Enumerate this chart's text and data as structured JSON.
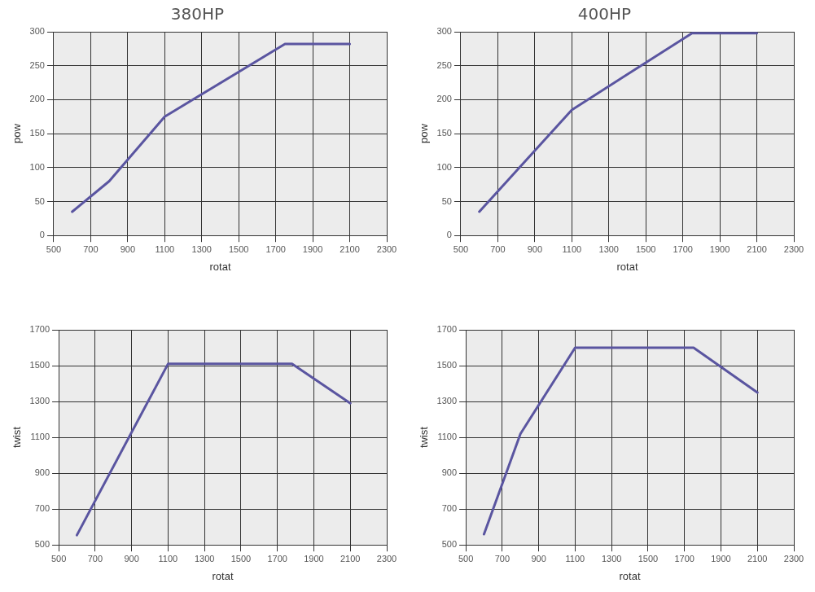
{
  "chart_data": [
    {
      "type": "line",
      "title": "380HP",
      "xlabel": "rotat",
      "ylabel": "pow",
      "x": [
        600,
        800,
        1100,
        1750,
        2100
      ],
      "series": [
        {
          "color": "#5a55a0",
          "values": [
            35,
            80,
            175,
            282,
            282
          ]
        }
      ],
      "xlim": [
        500,
        2300
      ],
      "xticks": [
        500,
        700,
        900,
        1100,
        1300,
        1500,
        1700,
        1900,
        2100,
        2300
      ],
      "ylim": [
        0,
        300
      ],
      "yticks": [
        0,
        50,
        100,
        150,
        200,
        250,
        300
      ],
      "grid": true,
      "marker": "none",
      "line_style": "solid"
    },
    {
      "type": "line",
      "title": "400HP",
      "xlabel": "rotat",
      "ylabel": "pow",
      "x": [
        600,
        1100,
        1750,
        2100
      ],
      "series": [
        {
          "color": "#5a55a0",
          "values": [
            35,
            185,
            298,
            298
          ]
        }
      ],
      "xlim": [
        500,
        2300
      ],
      "xticks": [
        500,
        700,
        900,
        1100,
        1300,
        1500,
        1700,
        1900,
        2100,
        2300
      ],
      "ylim": [
        0,
        300
      ],
      "yticks": [
        0,
        50,
        100,
        150,
        200,
        250,
        300
      ],
      "grid": true,
      "marker": "none",
      "line_style": "solid"
    },
    {
      "type": "line",
      "xlabel": "rotat",
      "ylabel": "twist",
      "x": [
        600,
        1100,
        1780,
        2100
      ],
      "series": [
        {
          "color": "#5a55a0",
          "values": [
            555,
            1510,
            1510,
            1290
          ]
        }
      ],
      "xlim": [
        500,
        2300
      ],
      "xticks": [
        500,
        700,
        900,
        1100,
        1300,
        1500,
        1700,
        1900,
        2100,
        2300
      ],
      "ylim": [
        500,
        1700
      ],
      "yticks": [
        500,
        700,
        900,
        1100,
        1300,
        1500,
        1700
      ],
      "grid": true,
      "marker": "none",
      "line_style": "solid"
    },
    {
      "type": "line",
      "xlabel": "rotat",
      "ylabel": "twist",
      "x": [
        600,
        800,
        1100,
        1750,
        2100
      ],
      "series": [
        {
          "color": "#5a55a0",
          "values": [
            560,
            1120,
            1600,
            1600,
            1350
          ]
        }
      ],
      "xlim": [
        500,
        2300
      ],
      "xticks": [
        500,
        700,
        900,
        1100,
        1300,
        1500,
        1700,
        1900,
        2100,
        2300
      ],
      "ylim": [
        500,
        1700
      ],
      "yticks": [
        500,
        700,
        900,
        1100,
        1300,
        1500,
        1700
      ],
      "grid": true,
      "marker": "none",
      "line_style": "solid"
    }
  ]
}
